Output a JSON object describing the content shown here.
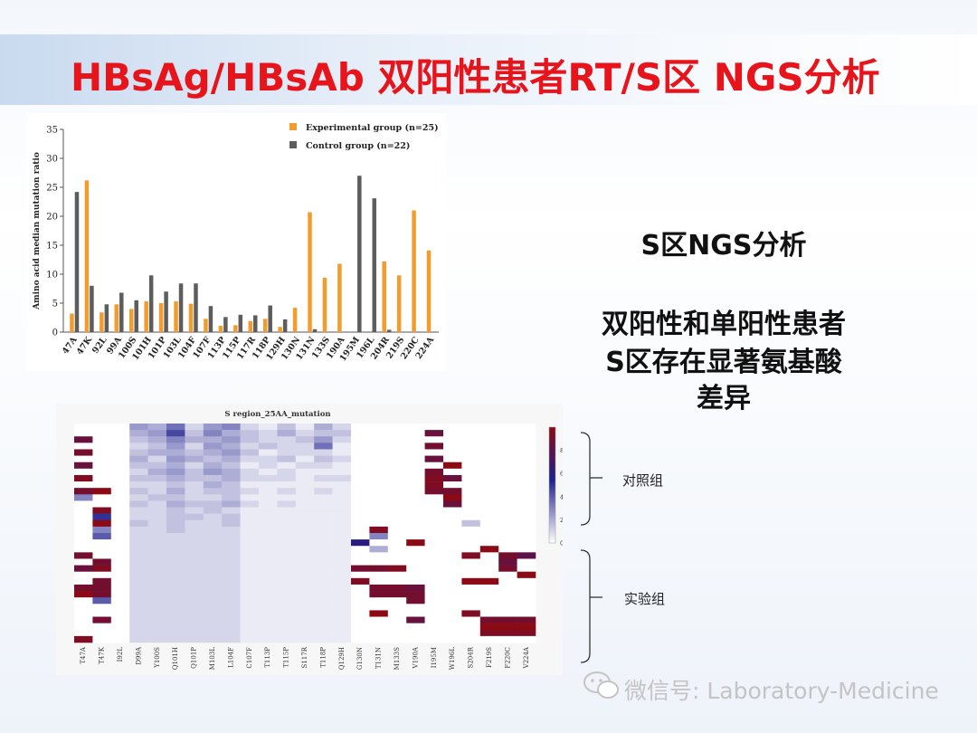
{
  "slide": {
    "title": "HBsAg/HBsAb 双阳性患者RT/S区 NGS分析",
    "side_title": "S区NGS分析",
    "side_lines": [
      "双阳性和单阳性患者",
      "S区存在显著氨基酸",
      "差异"
    ],
    "control_group_label": "对照组",
    "experimental_group_label": "实验组",
    "watermark": "微信号: Laboratory-Medicine",
    "colors": {
      "title": "#e8141b",
      "experimental": "#f39c2b",
      "control": "#5d5d5d"
    }
  },
  "chart_data": [
    {
      "type": "bar",
      "title": "",
      "xlabel": "",
      "ylabel": "Amino acid median mutation ratio",
      "ylim": [
        0,
        35
      ],
      "yticks": [
        0,
        5,
        10,
        15,
        20,
        25,
        30,
        35
      ],
      "legend_position": "top-right",
      "categories": [
        "47A",
        "47K",
        "92L",
        "99A",
        "100S",
        "101H",
        "101P",
        "103L",
        "104F",
        "107F",
        "113P",
        "115P",
        "117R",
        "118P",
        "129H",
        "130N",
        "131N",
        "133S",
        "190A",
        "195M",
        "196L",
        "204R",
        "219S",
        "220C",
        "224A"
      ],
      "series": [
        {
          "name": "Experimental group (n=25)",
          "color": "#f39c2b",
          "values": [
            3.2,
            26.2,
            3.4,
            4.8,
            4.0,
            5.3,
            5.0,
            5.3,
            4.9,
            2.3,
            1.1,
            1.2,
            1.9,
            2.3,
            0.9,
            4.2,
            20.7,
            9.4,
            11.8,
            0,
            0,
            12.2,
            9.8,
            21.0,
            14.1
          ]
        },
        {
          "name": "Control group (n=22)",
          "color": "#5d5d5d",
          "values": [
            24.2,
            8.0,
            4.8,
            6.8,
            5.5,
            9.8,
            7.0,
            8.4,
            8.4,
            4.5,
            2.6,
            3.0,
            2.9,
            4.6,
            2.2,
            0,
            0.5,
            0,
            0,
            27.0,
            23.1,
            0.4,
            0,
            0,
            0
          ]
        }
      ]
    },
    {
      "type": "heatmap",
      "title": "S region_25AA_mutation",
      "columns": [
        "T47A",
        "T47K",
        "I92L",
        "D99A",
        "Y100S",
        "Q101H",
        "Q101P",
        "M103L",
        "L104F",
        "C107F",
        "T113P",
        "T115P",
        "S117R",
        "T118P",
        "Q129H",
        "G130N",
        "T131N",
        "M133S",
        "V190A",
        "I195M",
        "W196L",
        "S204R",
        "F219S",
        "F220C",
        "V224A"
      ],
      "color_scale": {
        "min": 0,
        "max": 100,
        "ticks": [
          0,
          20,
          40,
          60,
          80
        ],
        "low": "#ffffff",
        "mid": "#1e1e8c",
        "high": "#8b0a14"
      },
      "groups": [
        "对照组",
        "实验组"
      ],
      "rows": [
        [
          0,
          0,
          0,
          25,
          20,
          35,
          10,
          25,
          30,
          10,
          5,
          15,
          5,
          20,
          10,
          0,
          0,
          0,
          0,
          0,
          0,
          0,
          0,
          0,
          0
        ],
        [
          0,
          0,
          0,
          20,
          25,
          45,
          15,
          30,
          20,
          15,
          10,
          20,
          10,
          15,
          15,
          0,
          0,
          0,
          0,
          85,
          0,
          0,
          0,
          0,
          0
        ],
        [
          85,
          0,
          0,
          15,
          20,
          30,
          20,
          20,
          25,
          15,
          10,
          10,
          15,
          25,
          10,
          0,
          0,
          0,
          0,
          0,
          0,
          0,
          0,
          0,
          0
        ],
        [
          0,
          0,
          0,
          10,
          15,
          25,
          10,
          25,
          20,
          10,
          15,
          10,
          10,
          35,
          5,
          0,
          0,
          0,
          0,
          90,
          0,
          0,
          0,
          0,
          0
        ],
        [
          90,
          0,
          0,
          15,
          20,
          20,
          15,
          20,
          25,
          15,
          5,
          10,
          10,
          10,
          5,
          0,
          0,
          0,
          0,
          0,
          0,
          0,
          0,
          0,
          0
        ],
        [
          0,
          0,
          0,
          20,
          10,
          25,
          20,
          15,
          20,
          10,
          10,
          15,
          5,
          15,
          10,
          0,
          0,
          0,
          0,
          85,
          0,
          0,
          0,
          0,
          0
        ],
        [
          85,
          0,
          0,
          15,
          15,
          20,
          10,
          20,
          15,
          5,
          10,
          5,
          10,
          10,
          5,
          0,
          0,
          0,
          0,
          0,
          100,
          0,
          0,
          0,
          0
        ],
        [
          0,
          0,
          0,
          10,
          20,
          25,
          15,
          25,
          20,
          10,
          5,
          10,
          5,
          5,
          5,
          0,
          0,
          0,
          0,
          90,
          0,
          0,
          0,
          0,
          0
        ],
        [
          95,
          0,
          0,
          15,
          15,
          20,
          15,
          15,
          20,
          10,
          10,
          10,
          5,
          10,
          10,
          0,
          0,
          0,
          0,
          95,
          85,
          0,
          0,
          0,
          0
        ],
        [
          0,
          0,
          0,
          10,
          10,
          15,
          10,
          20,
          15,
          5,
          5,
          5,
          5,
          5,
          5,
          0,
          0,
          0,
          0,
          95,
          0,
          0,
          0,
          0,
          0
        ],
        [
          90,
          100,
          0,
          15,
          10,
          20,
          10,
          15,
          15,
          10,
          5,
          10,
          5,
          10,
          5,
          0,
          0,
          0,
          0,
          90,
          90,
          0,
          0,
          0,
          0
        ],
        [
          30,
          0,
          0,
          10,
          15,
          15,
          10,
          10,
          15,
          5,
          5,
          5,
          5,
          5,
          5,
          0,
          0,
          0,
          0,
          0,
          100,
          0,
          0,
          0,
          0
        ],
        [
          0,
          0,
          0,
          15,
          10,
          20,
          15,
          15,
          20,
          10,
          5,
          10,
          5,
          5,
          5,
          0,
          0,
          0,
          0,
          0,
          85,
          0,
          0,
          0,
          0
        ],
        [
          0,
          95,
          0,
          10,
          10,
          15,
          10,
          15,
          10,
          5,
          5,
          5,
          5,
          5,
          5,
          0,
          0,
          0,
          0,
          0,
          0,
          0,
          0,
          0,
          0
        ],
        [
          0,
          50,
          0,
          10,
          10,
          15,
          15,
          10,
          15,
          5,
          5,
          5,
          5,
          5,
          5,
          0,
          0,
          0,
          0,
          0,
          0,
          0,
          0,
          0,
          0
        ],
        [
          0,
          100,
          0,
          15,
          10,
          15,
          10,
          10,
          15,
          5,
          5,
          5,
          5,
          5,
          5,
          0,
          0,
          0,
          0,
          0,
          0,
          15,
          0,
          0,
          0
        ],
        [
          0,
          30,
          0,
          10,
          10,
          15,
          10,
          10,
          10,
          5,
          5,
          5,
          5,
          5,
          5,
          0,
          95,
          0,
          0,
          0,
          0,
          0,
          0,
          0,
          0
        ],
        [
          0,
          40,
          0,
          10,
          10,
          10,
          10,
          10,
          10,
          5,
          5,
          5,
          5,
          5,
          5,
          0,
          30,
          0,
          0,
          0,
          0,
          0,
          0,
          0,
          0
        ],
        [
          0,
          0,
          0,
          10,
          10,
          10,
          10,
          10,
          10,
          5,
          5,
          5,
          5,
          5,
          5,
          60,
          0,
          0,
          100,
          0,
          0,
          0,
          0,
          0,
          0
        ],
        [
          0,
          0,
          0,
          10,
          10,
          10,
          10,
          10,
          10,
          5,
          5,
          5,
          5,
          5,
          5,
          0,
          20,
          0,
          0,
          0,
          0,
          0,
          100,
          0,
          0
        ],
        [
          90,
          0,
          0,
          10,
          10,
          10,
          10,
          10,
          10,
          5,
          5,
          5,
          5,
          5,
          5,
          0,
          0,
          0,
          0,
          0,
          0,
          95,
          0,
          90,
          80
        ],
        [
          0,
          90,
          0,
          10,
          10,
          10,
          10,
          10,
          10,
          5,
          5,
          5,
          5,
          5,
          5,
          0,
          0,
          0,
          0,
          0,
          0,
          0,
          0,
          85,
          0
        ],
        [
          85,
          95,
          0,
          10,
          10,
          10,
          10,
          10,
          10,
          5,
          5,
          5,
          5,
          5,
          5,
          90,
          90,
          95,
          0,
          0,
          0,
          0,
          0,
          90,
          0
        ],
        [
          0,
          0,
          0,
          10,
          10,
          10,
          10,
          10,
          10,
          5,
          5,
          5,
          5,
          5,
          5,
          0,
          0,
          0,
          0,
          0,
          0,
          0,
          0,
          0,
          100
        ],
        [
          0,
          90,
          0,
          10,
          10,
          10,
          10,
          10,
          10,
          5,
          5,
          5,
          5,
          5,
          5,
          95,
          0,
          0,
          0,
          0,
          0,
          100,
          100,
          0,
          0
        ],
        [
          90,
          90,
          0,
          10,
          10,
          10,
          10,
          10,
          10,
          5,
          5,
          5,
          5,
          5,
          5,
          0,
          90,
          90,
          85,
          0,
          0,
          0,
          0,
          0,
          0
        ],
        [
          100,
          90,
          0,
          10,
          10,
          10,
          10,
          10,
          10,
          5,
          5,
          5,
          5,
          5,
          5,
          0,
          90,
          90,
          90,
          0,
          0,
          0,
          0,
          0,
          0
        ],
        [
          0,
          40,
          0,
          10,
          10,
          10,
          10,
          10,
          10,
          5,
          5,
          5,
          5,
          5,
          5,
          0,
          0,
          0,
          90,
          0,
          0,
          0,
          0,
          0,
          0
        ],
        [
          0,
          0,
          0,
          10,
          10,
          10,
          10,
          10,
          10,
          5,
          5,
          5,
          5,
          5,
          5,
          0,
          0,
          0,
          0,
          0,
          0,
          0,
          0,
          0,
          0
        ],
        [
          0,
          0,
          0,
          10,
          10,
          10,
          10,
          10,
          10,
          5,
          5,
          5,
          5,
          5,
          5,
          0,
          100,
          0,
          0,
          0,
          0,
          95,
          0,
          0,
          0
        ],
        [
          0,
          90,
          0,
          10,
          10,
          10,
          10,
          10,
          10,
          5,
          5,
          5,
          5,
          5,
          5,
          0,
          0,
          0,
          85,
          0,
          0,
          0,
          90,
          90,
          90
        ],
        [
          0,
          0,
          0,
          10,
          10,
          10,
          10,
          10,
          10,
          5,
          5,
          5,
          5,
          5,
          5,
          0,
          0,
          0,
          0,
          0,
          0,
          0,
          100,
          100,
          100
        ],
        [
          0,
          0,
          0,
          10,
          10,
          10,
          10,
          10,
          10,
          5,
          5,
          5,
          5,
          5,
          5,
          0,
          0,
          0,
          0,
          0,
          0,
          0,
          95,
          95,
          95
        ],
        [
          95,
          0,
          0,
          10,
          10,
          10,
          10,
          10,
          10,
          5,
          5,
          5,
          5,
          5,
          5,
          0,
          0,
          0,
          0,
          0,
          0,
          0,
          0,
          0,
          0
        ]
      ]
    }
  ]
}
